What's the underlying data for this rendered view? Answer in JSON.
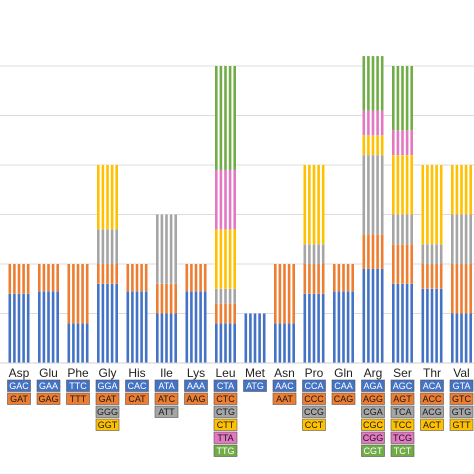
{
  "chart_data": {
    "type": "bar",
    "subtype": "stacked-striped",
    "title": "",
    "xlabel": "",
    "ylabel": "",
    "ylim": [
      0,
      6
    ],
    "grid": true,
    "legend": "none",
    "categories": [
      "Asp",
      "Glu",
      "Phe",
      "Gly",
      "His",
      "Ile",
      "Lys",
      "Leu",
      "Met",
      "Asn",
      "Pro",
      "Gln",
      "Arg",
      "Ser",
      "Thr",
      "Val"
    ],
    "codon_colors": {
      "blue": "#4472c4",
      "orange": "#ed7d31",
      "gray": "#a5a5a5",
      "yellow": "#ffc000",
      "pink": "#e377c2",
      "green": "#70ad47"
    },
    "amino_acids": [
      {
        "name": "Asp",
        "codons": [
          {
            "codon": "GAC",
            "color": "blue",
            "value": 1.4
          },
          {
            "codon": "GAT",
            "color": "orange",
            "value": 0.6
          }
        ]
      },
      {
        "name": "Glu",
        "codons": [
          {
            "codon": "GAA",
            "color": "blue",
            "value": 1.45
          },
          {
            "codon": "GAG",
            "color": "orange",
            "value": 0.55
          }
        ]
      },
      {
        "name": "Phe",
        "codons": [
          {
            "codon": "TTC",
            "color": "blue",
            "value": 0.8
          },
          {
            "codon": "TTT",
            "color": "orange",
            "value": 1.2
          }
        ]
      },
      {
        "name": "Gly",
        "codons": [
          {
            "codon": "GGA",
            "color": "blue",
            "value": 1.6
          },
          {
            "codon": "GAT",
            "color": "orange",
            "value": 0.4
          },
          {
            "codon": "GGG",
            "color": "gray",
            "value": 0.7
          },
          {
            "codon": "GGT",
            "color": "yellow",
            "value": 1.3
          }
        ]
      },
      {
        "name": "His",
        "codons": [
          {
            "codon": "CAC",
            "color": "blue",
            "value": 1.45
          },
          {
            "codon": "CAT",
            "color": "orange",
            "value": 0.55
          }
        ]
      },
      {
        "name": "Ile",
        "codons": [
          {
            "codon": "ATA",
            "color": "blue",
            "value": 1.0
          },
          {
            "codon": "ATC",
            "color": "orange",
            "value": 0.6
          },
          {
            "codon": "ATT",
            "color": "gray",
            "value": 1.4
          }
        ]
      },
      {
        "name": "Lys",
        "codons": [
          {
            "codon": "AAA",
            "color": "blue",
            "value": 1.45
          },
          {
            "codon": "AAG",
            "color": "orange",
            "value": 0.55
          }
        ]
      },
      {
        "name": "Leu",
        "codons": [
          {
            "codon": "CTA",
            "color": "blue",
            "value": 0.8
          },
          {
            "codon": "CTC",
            "color": "orange",
            "value": 0.4
          },
          {
            "codon": "CTG",
            "color": "gray",
            "value": 0.3
          },
          {
            "codon": "CTT",
            "color": "yellow",
            "value": 1.2
          },
          {
            "codon": "TTA",
            "color": "pink",
            "value": 1.2
          },
          {
            "codon": "TTG",
            "color": "green",
            "value": 2.1
          }
        ]
      },
      {
        "name": "Met",
        "codons": [
          {
            "codon": "ATG",
            "color": "blue",
            "value": 1.0
          }
        ]
      },
      {
        "name": "Asn",
        "codons": [
          {
            "codon": "AAC",
            "color": "blue",
            "value": 0.8
          },
          {
            "codon": "AAT",
            "color": "orange",
            "value": 1.2
          }
        ]
      },
      {
        "name": "Pro",
        "codons": [
          {
            "codon": "CCA",
            "color": "blue",
            "value": 1.4
          },
          {
            "codon": "CCC",
            "color": "orange",
            "value": 0.6
          },
          {
            "codon": "CCG",
            "color": "gray",
            "value": 0.4
          },
          {
            "codon": "CCT",
            "color": "yellow",
            "value": 1.6
          }
        ]
      },
      {
        "name": "Gln",
        "codons": [
          {
            "codon": "CAA",
            "color": "blue",
            "value": 1.45
          },
          {
            "codon": "CAG",
            "color": "orange",
            "value": 0.55
          }
        ]
      },
      {
        "name": "Arg",
        "codons": [
          {
            "codon": "AGA",
            "color": "blue",
            "value": 1.9
          },
          {
            "codon": "AGG",
            "color": "orange",
            "value": 0.7
          },
          {
            "codon": "CGA",
            "color": "gray",
            "value": 1.6
          },
          {
            "codon": "CGC",
            "color": "yellow",
            "value": 0.4
          },
          {
            "codon": "CGG",
            "color": "pink",
            "value": 0.5
          },
          {
            "codon": "CGT",
            "color": "green",
            "value": 1.1
          }
        ]
      },
      {
        "name": "Ser",
        "codons": [
          {
            "codon": "AGC",
            "color": "blue",
            "value": 1.6
          },
          {
            "codon": "AGT",
            "color": "orange",
            "value": 0.8
          },
          {
            "codon": "TCA",
            "color": "gray",
            "value": 0.6
          },
          {
            "codon": "TCC",
            "color": "yellow",
            "value": 1.2
          },
          {
            "codon": "TCG",
            "color": "pink",
            "value": 0.5
          },
          {
            "codon": "TCT",
            "color": "green",
            "value": 1.3
          }
        ]
      },
      {
        "name": "Thr",
        "codons": [
          {
            "codon": "ACA",
            "color": "blue",
            "value": 1.5
          },
          {
            "codon": "ACC",
            "color": "orange",
            "value": 0.5
          },
          {
            "codon": "ACG",
            "color": "gray",
            "value": 0.4
          },
          {
            "codon": "ACT",
            "color": "yellow",
            "value": 1.6
          }
        ]
      },
      {
        "name": "Val",
        "codons": [
          {
            "codon": "GTA",
            "color": "blue",
            "value": 1.0
          },
          {
            "codon": "GTC",
            "color": "orange",
            "value": 1.0
          },
          {
            "codon": "GTG",
            "color": "gray",
            "value": 1.0
          },
          {
            "codon": "GTT",
            "color": "yellow",
            "value": 1.0
          }
        ]
      }
    ]
  }
}
